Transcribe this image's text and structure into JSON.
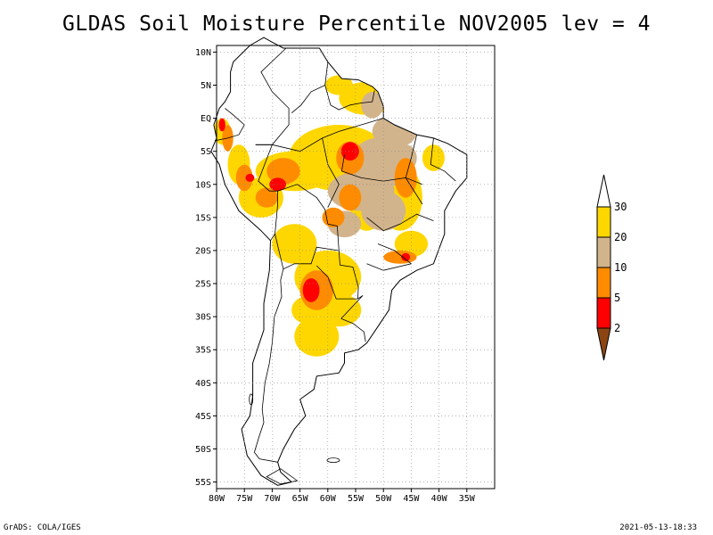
{
  "title": "GLDAS Soil Moisture Percentile NOV2005 lev = 4",
  "map": {
    "lon_range": [
      -80,
      -30
    ],
    "lat_range": [
      -56,
      11
    ],
    "lat_ticks": [
      {
        "value": 10,
        "label": "10N"
      },
      {
        "value": 5,
        "label": "5N"
      },
      {
        "value": 0,
        "label": "EQ"
      },
      {
        "value": -5,
        "label": "5S"
      },
      {
        "value": -10,
        "label": "10S"
      },
      {
        "value": -15,
        "label": "15S"
      },
      {
        "value": -20,
        "label": "20S"
      },
      {
        "value": -25,
        "label": "25S"
      },
      {
        "value": -30,
        "label": "30S"
      },
      {
        "value": -35,
        "label": "35S"
      },
      {
        "value": -40,
        "label": "40S"
      },
      {
        "value": -45,
        "label": "45S"
      },
      {
        "value": -50,
        "label": "50S"
      },
      {
        "value": -55,
        "label": "55S"
      }
    ],
    "lon_ticks": [
      {
        "value": -80,
        "label": "80W"
      },
      {
        "value": -75,
        "label": "75W"
      },
      {
        "value": -70,
        "label": "70W"
      },
      {
        "value": -65,
        "label": "65W"
      },
      {
        "value": -60,
        "label": "60W"
      },
      {
        "value": -55,
        "label": "55W"
      },
      {
        "value": -50,
        "label": "50W"
      },
      {
        "value": -45,
        "label": "45W"
      },
      {
        "value": -40,
        "label": "40W"
      },
      {
        "value": -35,
        "label": "35W"
      }
    ],
    "grid": "dotted",
    "colors": {
      "below_2": "#8b4513",
      "2_5": "#ff0000",
      "5_10": "#ff8c00",
      "10_20": "#d2b48c",
      "20_30": "#ffd700",
      "above_30": "#ffffff"
    }
  },
  "legend": {
    "placement": "right",
    "labels": [
      "30",
      "20",
      "10",
      "5",
      "2"
    ]
  },
  "footer": {
    "left": "GrADS: COLA/IGES",
    "right": "2021-05-13-18:33"
  }
}
